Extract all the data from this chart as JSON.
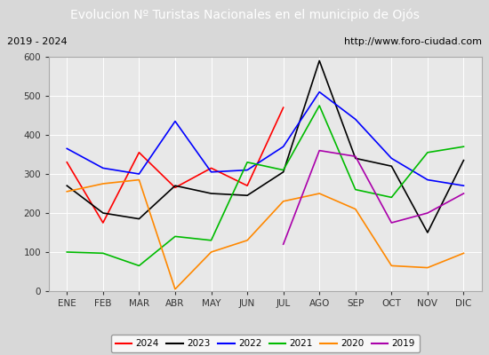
{
  "title": "Evolucion Nº Turistas Nacionales en el municipio de Ojós",
  "subtitle_left": "2019 - 2024",
  "subtitle_right": "http://www.foro-ciudad.com",
  "months": [
    "ENE",
    "FEB",
    "MAR",
    "ABR",
    "MAY",
    "JUN",
    "JUL",
    "AGO",
    "SEP",
    "OCT",
    "NOV",
    "DIC"
  ],
  "ylim": [
    0,
    600
  ],
  "yticks": [
    0,
    100,
    200,
    300,
    400,
    500,
    600
  ],
  "series": {
    "2024": {
      "color": "#ff0000",
      "values": [
        330,
        175,
        355,
        265,
        315,
        270,
        470,
        null,
        null,
        null,
        null,
        null
      ]
    },
    "2023": {
      "color": "#000000",
      "values": [
        270,
        200,
        185,
        270,
        250,
        245,
        305,
        590,
        340,
        320,
        150,
        335
      ]
    },
    "2022": {
      "color": "#0000ff",
      "values": [
        365,
        315,
        300,
        435,
        305,
        310,
        370,
        510,
        440,
        340,
        285,
        270
      ]
    },
    "2021": {
      "color": "#00bb00",
      "values": [
        100,
        97,
        65,
        140,
        130,
        330,
        310,
        475,
        260,
        240,
        355,
        370
      ]
    },
    "2020": {
      "color": "#ff8800",
      "values": [
        255,
        275,
        285,
        5,
        100,
        130,
        230,
        250,
        210,
        65,
        60,
        97
      ]
    },
    "2019": {
      "color": "#aa00aa",
      "values": [
        null,
        null,
        null,
        null,
        null,
        null,
        120,
        360,
        345,
        175,
        200,
        250
      ]
    }
  },
  "legend_order": [
    "2024",
    "2023",
    "2022",
    "2021",
    "2020",
    "2019"
  ],
  "bg_color": "#d8d8d8",
  "plot_bg_color": "#e8e8e8",
  "title_bg_color": "#5b8dd9",
  "title_text_color": "#ffffff",
  "grid_color": "#ffffff",
  "subtitle_bg_color": "#f0f0f0",
  "outer_border_color": "#5b8dd9"
}
